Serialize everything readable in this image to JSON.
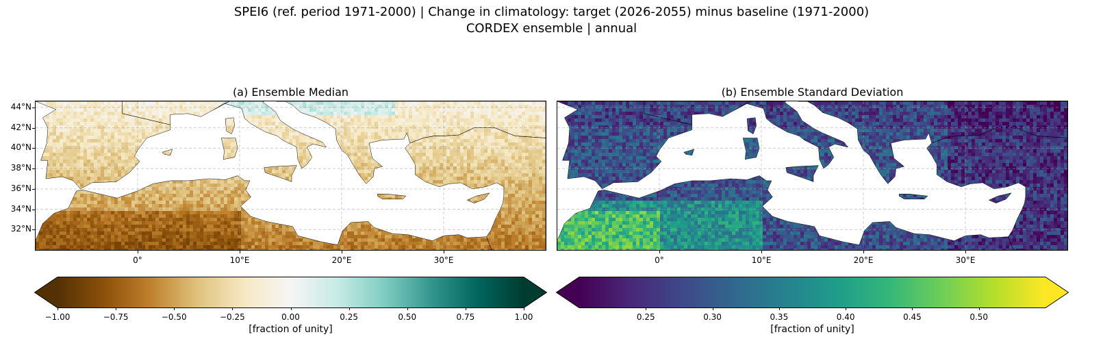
{
  "title": {
    "line1": "SPEI6 (ref. period 1971-2000) | Change in climatology: target (2026-2055) minus baseline (1971-2000)",
    "line2": "CORDEX ensemble | annual"
  },
  "panels": [
    {
      "title": "(a) Ensemble Median",
      "colormap": "BrBG",
      "colors": [
        "#543005",
        "#8c510a",
        "#bf812d",
        "#dfc27d",
        "#f6e8c3",
        "#f5f5f5",
        "#c7eae5",
        "#80cdc1",
        "#35978f",
        "#01665e",
        "#003c30"
      ],
      "colorbar": {
        "ticks": [
          "−1.00",
          "−0.75",
          "−0.50",
          "−0.25",
          "0.00",
          "0.25",
          "0.50",
          "0.75",
          "1.00"
        ],
        "label": "[fraction of unity]",
        "range": [
          -1.0,
          1.0
        ],
        "extend": "both"
      }
    },
    {
      "title": "(b) Ensemble Standard Deviation",
      "colormap": "viridis",
      "colors": [
        "#440154",
        "#482878",
        "#3e4989",
        "#31688e",
        "#26828e",
        "#1f9e89",
        "#35b779",
        "#6ece58",
        "#b5de2b",
        "#fde725"
      ],
      "colorbar": {
        "ticks": [
          "0.25",
          "0.30",
          "0.35",
          "0.40",
          "0.45",
          "0.50"
        ],
        "label": "[fraction of unity]",
        "range": [
          0.2,
          0.55
        ],
        "extend": "both"
      }
    }
  ],
  "axes": {
    "lat_ticks": [
      "44°N",
      "42°N",
      "40°N",
      "38°N",
      "36°N",
      "34°N",
      "32°N"
    ],
    "lon_ticks": [
      "0°",
      "10°E",
      "20°E",
      "30°E"
    ],
    "lon_range": [
      -10,
      40
    ],
    "lat_range": [
      30,
      44.6
    ],
    "grid": true
  }
}
